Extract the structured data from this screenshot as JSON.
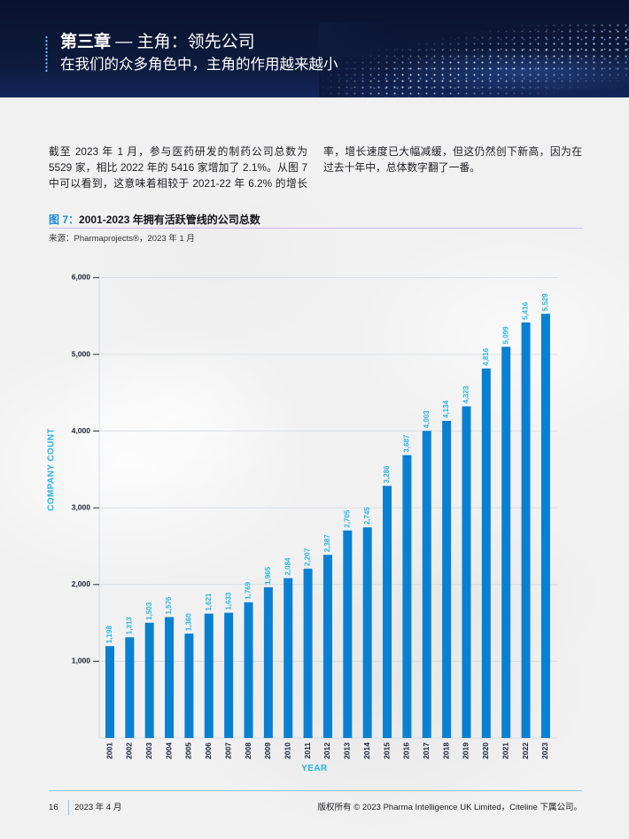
{
  "header": {
    "chapter": "第三章",
    "chapter_title": "— 主角：领先公司",
    "subtitle": "在我们的众多角色中，主角的作用越来越小"
  },
  "body": {
    "columns": [
      [
        "截至 2023 年 1 月，参与医药研发的制药公司总数为",
        "5529 家，相比 2022 年的 5416 家增加了 2.1%。从图 7",
        "中可以看到，这意味着相较于 2021-22 年 6.2% 的增长"
      ],
      [
        "率，增长速度已大幅减缓，但这仍然创下新高，因为在",
        "过去十年中，总体数字翻了一番。"
      ]
    ]
  },
  "figure": {
    "label": "图 7：",
    "source": "来源：Pharmaprojects®，2023 年 1 月"
  },
  "chart_data": {
    "type": "bar",
    "title": "2001-2023 年拥有活跃管线的公司总数",
    "xlabel": "YEAR",
    "ylabel": "COMPANY COUNT",
    "categories": [
      "2001",
      "2002",
      "2003",
      "2004",
      "2005",
      "2006",
      "2007",
      "2008",
      "2009",
      "2010",
      "2011",
      "2012",
      "2013",
      "2014",
      "2015",
      "2016",
      "2017",
      "2018",
      "2019",
      "2020",
      "2021",
      "2022",
      "2023"
    ],
    "values": [
      1198,
      1313,
      1503,
      1576,
      1360,
      1621,
      1633,
      1769,
      1965,
      2084,
      2207,
      2387,
      2705,
      2745,
      3286,
      3687,
      4003,
      4134,
      4323,
      4816,
      5099,
      5416,
      5529
    ],
    "ylim": [
      0,
      6000
    ],
    "y_ticks": [
      1000,
      2000,
      3000,
      4000,
      5000,
      6000
    ],
    "grid": true,
    "data_labels": true
  },
  "footer": {
    "page_number": "16",
    "date": "2023 年 4 月",
    "copyright": "版权所有 © 2023 Pharma Intelligence UK Limited，Citeline 下属公司。"
  },
  "colors": {
    "header_bg": "#0d1a3c",
    "bar": "#0a80d2",
    "accent": "#29b4e6",
    "figure_label": "#1c8ddb",
    "figure_rule": "#cbbbeb",
    "footer_rule": "#86c6ee"
  }
}
